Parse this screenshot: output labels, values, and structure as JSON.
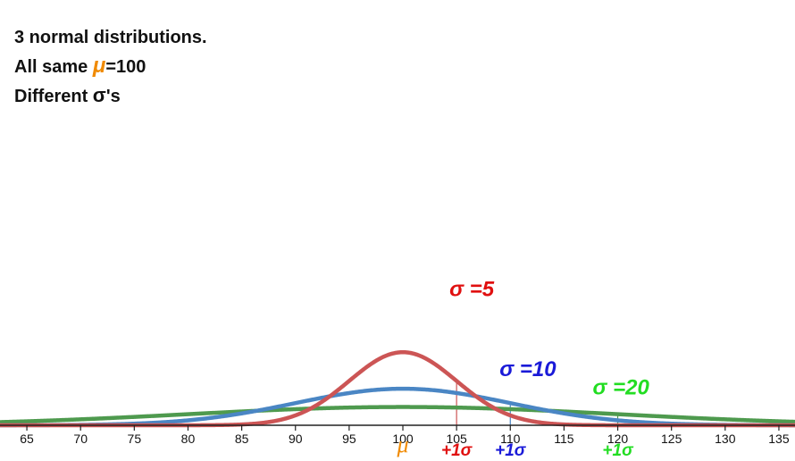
{
  "title": {
    "line1": "3 normal distributions.",
    "line2_prefix": "All same ",
    "line2_mu": "μ",
    "line2_suffix": "=100",
    "line3_prefix": "Different ",
    "line3_sigma": "σ",
    "line3_suffix": "'s"
  },
  "chart_data": {
    "type": "line",
    "xlim": [
      62.5,
      136.5
    ],
    "xticks": [
      65,
      70,
      75,
      80,
      85,
      90,
      95,
      100,
      105,
      110,
      115,
      120,
      125,
      130,
      135
    ],
    "mean": 100,
    "mean_label": "μ",
    "grid": false,
    "series": [
      {
        "label": "σ =5",
        "mu": 100,
        "sigma": 5,
        "color": "#cc5555",
        "text_color": "#e01010",
        "marker_x": 105,
        "marker_label": "+1σ",
        "marker_color": "#e01010"
      },
      {
        "label": "σ =10",
        "mu": 100,
        "sigma": 10,
        "color": "#4a86c4",
        "text_color": "#1a1ad8",
        "marker_x": 110,
        "marker_label": "+1σ",
        "marker_color": "#1a1ad8"
      },
      {
        "label": "σ =20",
        "mu": 100,
        "sigma": 20,
        "color": "#4e9a4e",
        "text_color": "#22dd22",
        "marker_x": 120,
        "marker_label": "+1σ",
        "marker_color": "#22dd22"
      }
    ]
  }
}
